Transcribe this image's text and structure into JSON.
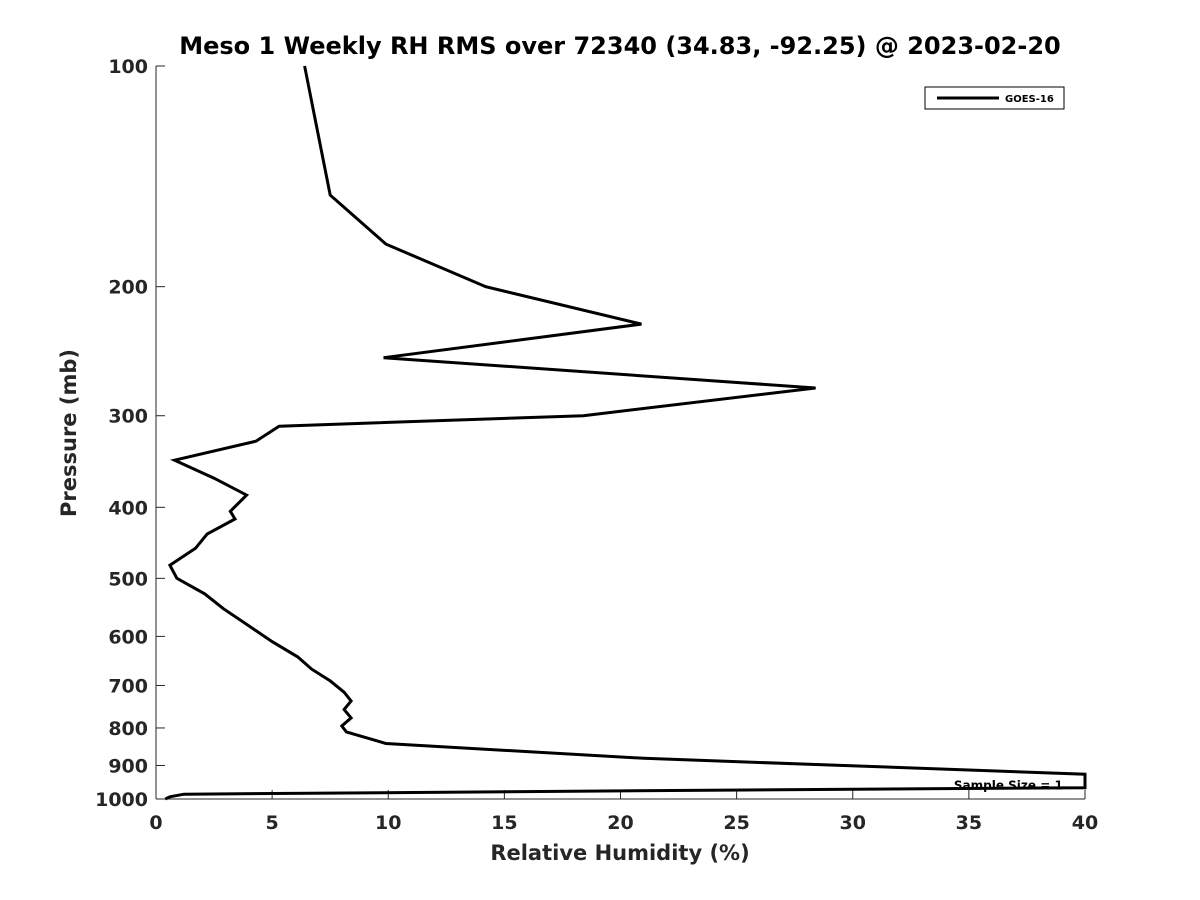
{
  "chart_data": {
    "type": "line",
    "title": "Meso 1 Weekly RH RMS over 72340 (34.83, -92.25) @ 2023-02-20",
    "xlabel": "Relative Humidity (%)",
    "ylabel": "Pressure (mb)",
    "xlim": [
      0,
      40
    ],
    "ylim": [
      100,
      1000
    ],
    "yscale": "log",
    "y_reversed": true,
    "grid": false,
    "legend_position": "top-right",
    "x_ticks": [
      0,
      5,
      10,
      15,
      20,
      25,
      30,
      35,
      40
    ],
    "y_ticks": [
      100,
      200,
      300,
      400,
      500,
      600,
      700,
      800,
      900,
      1000
    ],
    "series": [
      {
        "name": "GOES-16",
        "color": "#000000",
        "points": [
          {
            "x": 6.4,
            "y": 100
          },
          {
            "x": 7.5,
            "y": 150
          },
          {
            "x": 9.9,
            "y": 175
          },
          {
            "x": 14.2,
            "y": 200
          },
          {
            "x": 20.9,
            "y": 225
          },
          {
            "x": 9.8,
            "y": 250
          },
          {
            "x": 28.4,
            "y": 275
          },
          {
            "x": 18.4,
            "y": 300
          },
          {
            "x": 5.3,
            "y": 310
          },
          {
            "x": 4.3,
            "y": 325
          },
          {
            "x": 0.8,
            "y": 345
          },
          {
            "x": 2.5,
            "y": 365
          },
          {
            "x": 3.9,
            "y": 385
          },
          {
            "x": 3.2,
            "y": 405
          },
          {
            "x": 3.4,
            "y": 415
          },
          {
            "x": 2.2,
            "y": 435
          },
          {
            "x": 1.7,
            "y": 455
          },
          {
            "x": 0.6,
            "y": 480
          },
          {
            "x": 0.9,
            "y": 500
          },
          {
            "x": 2.1,
            "y": 525
          },
          {
            "x": 2.9,
            "y": 550
          },
          {
            "x": 3.8,
            "y": 575
          },
          {
            "x": 5.0,
            "y": 610
          },
          {
            "x": 6.1,
            "y": 640
          },
          {
            "x": 6.7,
            "y": 665
          },
          {
            "x": 7.5,
            "y": 690
          },
          {
            "x": 8.1,
            "y": 715
          },
          {
            "x": 8.4,
            "y": 735
          },
          {
            "x": 8.1,
            "y": 755
          },
          {
            "x": 8.4,
            "y": 775
          },
          {
            "x": 8.0,
            "y": 795
          },
          {
            "x": 8.2,
            "y": 810
          },
          {
            "x": 9.9,
            "y": 840
          },
          {
            "x": 21.0,
            "y": 880
          },
          {
            "x": 40.0,
            "y": 925
          },
          {
            "x": 40.0,
            "y": 965
          },
          {
            "x": 20.0,
            "y": 975
          },
          {
            "x": 1.2,
            "y": 985
          },
          {
            "x": 0.6,
            "y": 993
          },
          {
            "x": 0.4,
            "y": 1000
          }
        ]
      }
    ],
    "annotations": [
      {
        "text": "Sample Size = 1",
        "x": 36.7,
        "y": 970
      }
    ]
  }
}
